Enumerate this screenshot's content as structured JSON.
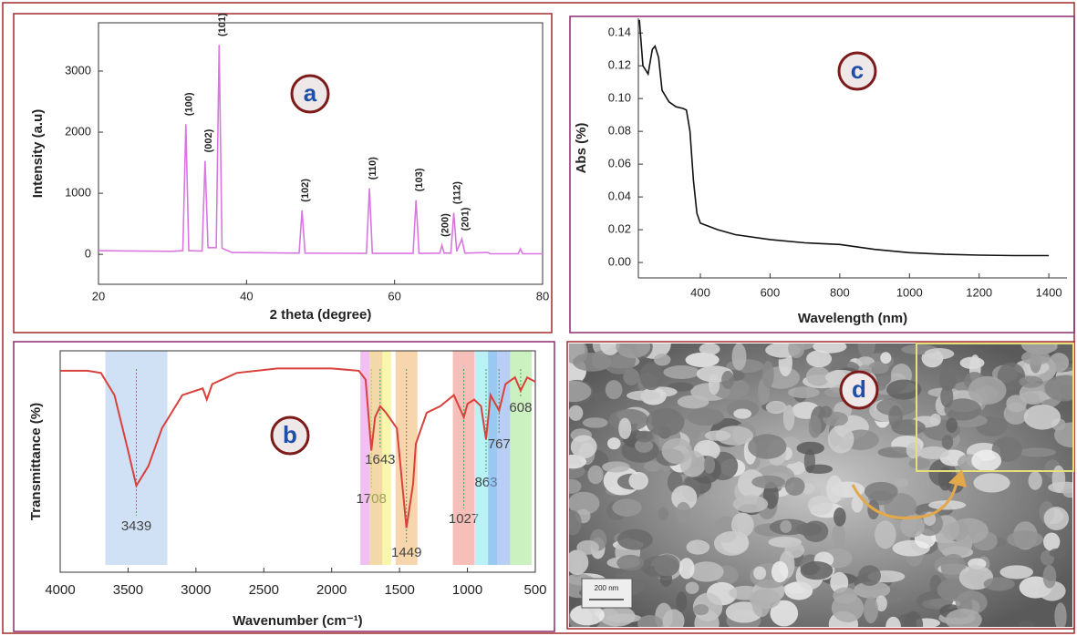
{
  "chart_data": [
    {
      "type": "line",
      "label": "a",
      "xlabel": "2 theta (degree)",
      "ylabel": "Intensity (a.u)",
      "color": "#d877e0",
      "x": [
        20,
        30,
        31.4,
        31.8,
        32.2,
        34.0,
        34.4,
        34.8,
        35.9,
        36.3,
        36.7,
        38,
        47.1,
        47.5,
        47.9,
        56.2,
        56.6,
        57.0,
        62.5,
        62.9,
        63.3,
        66.1,
        66.4,
        66.7,
        67.6,
        68.0,
        68.4,
        69.1,
        69.5,
        72.6,
        72.9,
        76.7,
        77.0,
        77.3,
        80
      ],
      "values": [
        60,
        50,
        60,
        2130,
        60,
        55,
        1530,
        110,
        110,
        3430,
        100,
        30,
        20,
        720,
        20,
        15,
        1080,
        15,
        15,
        890,
        15,
        20,
        150,
        20,
        20,
        680,
        50,
        250,
        20,
        30,
        10,
        10,
        90,
        10,
        10
      ],
      "xlim": [
        20,
        80
      ],
      "ylim": [
        -490,
        3790
      ],
      "xticks": [
        20,
        40,
        60,
        80
      ],
      "yticks": [
        0,
        1000,
        2000,
        3000
      ],
      "annotations": [
        {
          "text": "(100)",
          "x": 31.8,
          "y": 2130
        },
        {
          "text": "(002)",
          "x": 34.4,
          "y": 1530
        },
        {
          "text": "(101)",
          "x": 36.3,
          "y": 3430
        },
        {
          "text": "(102)",
          "x": 47.5,
          "y": 720
        },
        {
          "text": "(110)",
          "x": 56.6,
          "y": 1080
        },
        {
          "text": "(103)",
          "x": 62.9,
          "y": 890
        },
        {
          "text": "(200)",
          "x": 66.4,
          "y": 150
        },
        {
          "text": "(112)",
          "x": 68.0,
          "y": 680
        },
        {
          "text": "(201)",
          "x": 69.1,
          "y": 250
        }
      ]
    },
    {
      "type": "line",
      "label": "b",
      "xlabel": "Wavenumber (cm⁻¹)",
      "ylabel": "Transmittance (%)",
      "color": "#d9413b",
      "x": [
        4000,
        3800,
        3700,
        3600,
        3500,
        3439,
        3350,
        3250,
        3100,
        2950,
        2920,
        2880,
        2700,
        2400,
        2000,
        1800,
        1750,
        1708,
        1680,
        1643,
        1600,
        1520,
        1449,
        1400,
        1380,
        1300,
        1200,
        1100,
        1027,
        1000,
        950,
        900,
        863,
        830,
        767,
        720,
        650,
        608,
        560,
        500
      ],
      "values": [
        91,
        91,
        90,
        80,
        55,
        39,
        48,
        65,
        80,
        83,
        78,
        85,
        90,
        92,
        92,
        91,
        87,
        55,
        70,
        75,
        72,
        65,
        20,
        40,
        58,
        72,
        75,
        80,
        70,
        76,
        78,
        75,
        60,
        80,
        73,
        85,
        88,
        82,
        88,
        86
      ],
      "xlim": [
        4000,
        500
      ],
      "ylim": [
        0,
        100
      ],
      "xticks": [
        4000,
        3500,
        3000,
        2500,
        2000,
        1500,
        1000,
        500
      ],
      "bands": [
        {
          "label": 3439,
          "color": "#a9c8ee"
        },
        {
          "label": 1708,
          "color": "#e58ae8"
        },
        {
          "label": 1643,
          "color": "#f2ef6a"
        },
        {
          "label": 1449,
          "color": "#f0b46a"
        },
        {
          "label": 1027,
          "color": "#ee8b7f"
        },
        {
          "label": 863,
          "color": "#7fe6ef"
        },
        {
          "label": 767,
          "color": "#7fa6ec"
        },
        {
          "label": 608,
          "color": "#9fe68a"
        }
      ]
    },
    {
      "type": "line",
      "label": "c",
      "xlabel": "Wavelength (nm)",
      "ylabel": "Abs (%)",
      "color": "#111111",
      "x": [
        225,
        235,
        250,
        262,
        270,
        280,
        290,
        310,
        330,
        350,
        360,
        370,
        380,
        390,
        400,
        450,
        500,
        600,
        700,
        800,
        900,
        1000,
        1100,
        1200,
        1300,
        1400
      ],
      "values": [
        0.148,
        0.12,
        0.115,
        0.13,
        0.132,
        0.125,
        0.105,
        0.098,
        0.095,
        0.094,
        0.093,
        0.08,
        0.05,
        0.03,
        0.024,
        0.02,
        0.017,
        0.014,
        0.012,
        0.011,
        0.008,
        0.006,
        0.005,
        0.0045,
        0.0042,
        0.0042
      ],
      "xlim": [
        222,
        1452
      ],
      "ylim": [
        -0.0094,
        0.149
      ],
      "xticks": [
        400,
        600,
        800,
        1000,
        1200,
        1400
      ],
      "yticks": [
        {
          "value": 0,
          "label": "0.00"
        },
        {
          "value": 0.02,
          "label": "0.02"
        },
        {
          "value": 0.04,
          "label": "0.04"
        },
        {
          "value": 0.06,
          "label": "0.06"
        },
        {
          "value": 0.08,
          "label": "0.08"
        },
        {
          "value": 0.1,
          "label": "0.10"
        },
        {
          "value": 0.12,
          "label": "0.12"
        },
        {
          "value": 0.14,
          "label": "0.14"
        }
      ]
    }
  ],
  "image": {
    "label": "d",
    "scale_bar": "200 nm"
  }
}
